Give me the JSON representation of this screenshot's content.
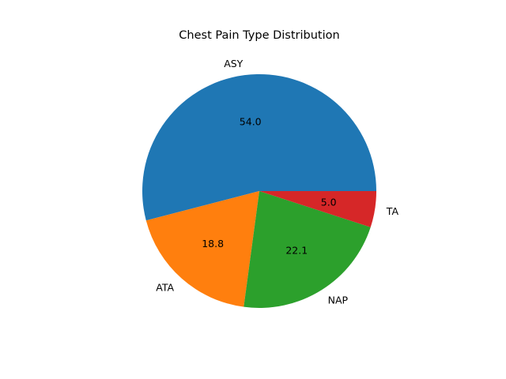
{
  "chart_data": {
    "type": "pie",
    "title": "Chest Pain Type Distribution",
    "categories": [
      "ASY",
      "ATA",
      "NAP",
      "TA"
    ],
    "values": [
      54.0,
      18.8,
      22.1,
      5.0
    ],
    "value_labels": [
      "54.0",
      "18.8",
      "22.1",
      "5.0"
    ],
    "colors": [
      "#1f77b4",
      "#ff7f0e",
      "#2ca02c",
      "#d62728"
    ],
    "start_angle_deg": 0,
    "direction": "counterclockwise",
    "legend": "none"
  }
}
